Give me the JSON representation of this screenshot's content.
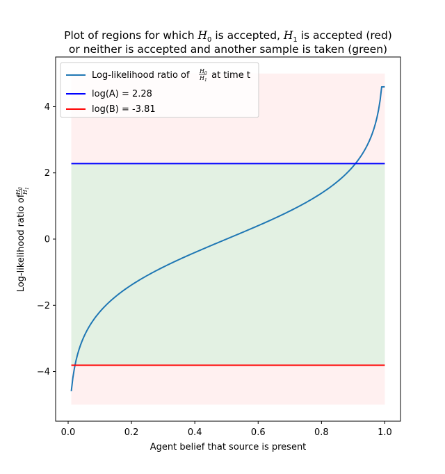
{
  "chart_data": {
    "type": "line",
    "title_line1": {
      "parts": [
        "Plot of regions for which ",
        "H",
        "0",
        " is accepted, ",
        "H",
        "1",
        " is accepted (red)"
      ]
    },
    "title_line2": "or neither is accepted and another sample is taken (green)",
    "xlabel": "Agent belief that source is present",
    "ylabel": {
      "prefix": "Log-likelihood ratio of ",
      "num": "H",
      "num_sub": "0",
      "den": "H",
      "den_sub": "1"
    },
    "xlim": [
      -0.0395,
      1.0495
    ],
    "ylim": [
      -5.5,
      5.5
    ],
    "x_ticks": [
      0.0,
      0.2,
      0.4,
      0.6,
      0.8,
      1.0
    ],
    "x_tick_labels": [
      "0.0",
      "0.2",
      "0.4",
      "0.6",
      "0.8",
      "1.0"
    ],
    "y_ticks": [
      -4,
      -2,
      0,
      2,
      4
    ],
    "y_tick_labels": [
      "−4",
      "−2",
      "0",
      "2",
      "4"
    ],
    "regions": [
      {
        "name": "reject-H0",
        "color": "#ff0000",
        "alpha": 0.06,
        "x_range": [
          0.01,
          1.0
        ],
        "y_range": [
          2.28,
          5.0
        ]
      },
      {
        "name": "continue",
        "color": "#008000",
        "alpha": 0.11,
        "x_range": [
          0.01,
          1.0
        ],
        "y_range": [
          -3.81,
          2.28
        ]
      },
      {
        "name": "reject-H1",
        "color": "#ff0000",
        "alpha": 0.06,
        "x_range": [
          0.01,
          1.0
        ],
        "y_range": [
          -5.0,
          -3.81
        ]
      }
    ],
    "series": [
      {
        "name": "Log-likelihood ratio of H0/H1 at time t",
        "color": "#1f77b4",
        "x": [
          0.01,
          0.02,
          0.03,
          0.04,
          0.05,
          0.07,
          0.1,
          0.15,
          0.2,
          0.3,
          0.4,
          0.5,
          0.6,
          0.7,
          0.8,
          0.85,
          0.9,
          0.93,
          0.95,
          0.97,
          0.98,
          0.99,
          1.0
        ],
        "y": [
          -4.6,
          -3.9,
          -3.48,
          -3.18,
          -2.94,
          -2.59,
          -2.2,
          -1.73,
          -1.39,
          -0.85,
          -0.41,
          0.0,
          0.41,
          0.85,
          1.39,
          1.73,
          2.2,
          2.59,
          2.94,
          3.48,
          3.9,
          4.6,
          4.6
        ]
      },
      {
        "name": "log(A) = 2.28",
        "color": "#0000ff",
        "x": [
          0.01,
          1.0
        ],
        "y": [
          2.28,
          2.28
        ]
      },
      {
        "name": "log(B) = -3.81",
        "color": "#ff0000",
        "x": [
          0.01,
          1.0
        ],
        "y": [
          -3.81,
          -3.81
        ]
      }
    ],
    "legend": {
      "placement": "upper-left",
      "entries": [
        {
          "prefix": "Log-likelihood ratio of ",
          "num": "H",
          "num_sub": "0",
          "den": "H",
          "den_sub": "1",
          "suffix": " at time t"
        },
        {
          "label": "log(A) = 2.28"
        },
        {
          "label": "log(B) = -3.81"
        }
      ]
    },
    "grid": false
  }
}
